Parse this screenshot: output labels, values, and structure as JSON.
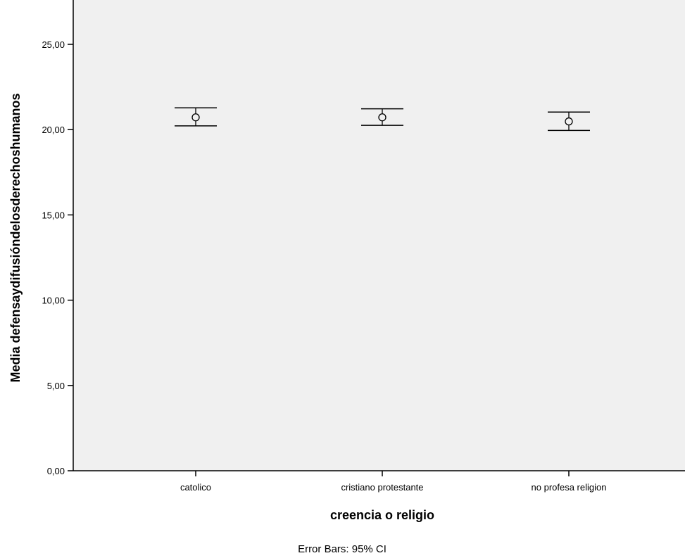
{
  "chart_data": {
    "type": "scatter",
    "subtype": "error-bar",
    "categories": [
      "catolico",
      "cristiano protestante",
      "no profesa religion"
    ],
    "means": [
      20.72,
      20.72,
      20.48
    ],
    "ci_lower": [
      20.22,
      20.25,
      19.95
    ],
    "ci_upper": [
      21.28,
      21.22,
      21.03
    ],
    "xlabel": "creencia o religio",
    "ylabel": "Media defensaydifusióndelosderechoshumanos",
    "ylim": [
      0,
      27.6
    ],
    "yticks": [
      "0,00",
      "5,00",
      "10,00",
      "15,00",
      "20,00",
      "25,00"
    ],
    "ytick_values": [
      0,
      5,
      10,
      15,
      20,
      25
    ],
    "footnote": "Error Bars: 95% CI",
    "grid": false,
    "legend": "none",
    "colors": {
      "plot_background": "#f0f0f0",
      "marks": "#000000"
    }
  }
}
